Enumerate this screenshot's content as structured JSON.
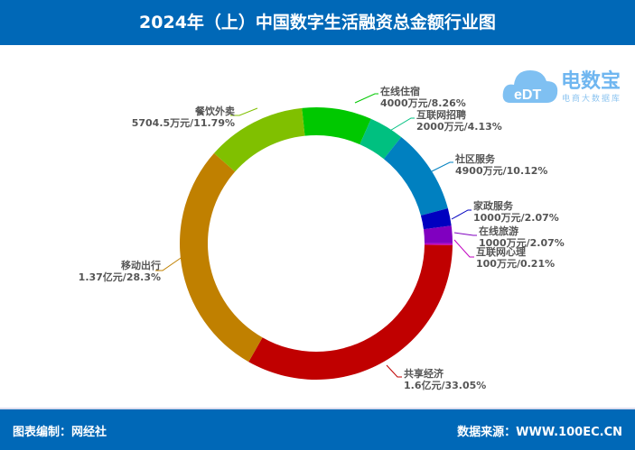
{
  "header": {
    "title": "2024年（上）中国数字生活融资总金额行业图"
  },
  "footer": {
    "left": "图表编制：网经社",
    "right": "数据来源：WWW.100EC.CN"
  },
  "logo": {
    "name": "电数宝",
    "sub": "电商大数据库",
    "mark": "eDT"
  },
  "chart_data": {
    "type": "pie",
    "donut": true,
    "categories": [
      "在线住宿",
      "互联网招聘",
      "社区服务",
      "家政服务",
      "在线旅游",
      "互联网心理",
      "共享经济",
      "移动出行",
      "餐饮外卖"
    ],
    "values": [
      8.26,
      4.13,
      10.12,
      2.07,
      2.07,
      0.21,
      33.05,
      28.3,
      11.79
    ],
    "amounts": [
      "4000万元",
      "2000万元",
      "4900万元",
      "1000万元",
      "1000万元",
      "100万元",
      "1.6亿元",
      "1.37亿元",
      "5704.5万元"
    ],
    "labels": [
      "4000万元/8.26%",
      "2000万元/4.13%",
      "4900万元/10.12%",
      "1000万元/2.07%",
      "1000万元/2.07%",
      "100万元/0.21%",
      "1.6亿元/33.05%",
      "1.37亿元/28.3%",
      "5704.5万元/11.79%"
    ],
    "colors": [
      "#00c800",
      "#00c080",
      "#0080c0",
      "#0000c0",
      "#8000c0",
      "#c000c0",
      "#c00000",
      "#c08000",
      "#80c000"
    ]
  }
}
